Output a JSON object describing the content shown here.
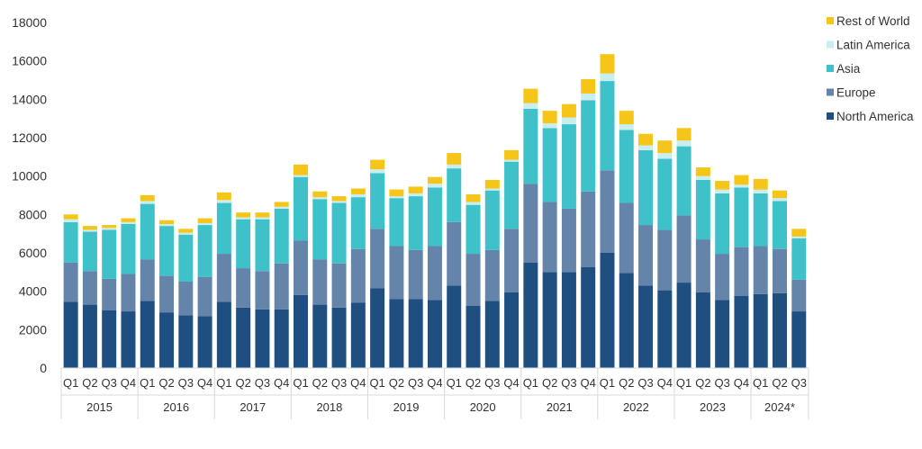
{
  "chart_data": {
    "type": "bar",
    "stacked": true,
    "title": "",
    "xlabel": "",
    "ylabel": "",
    "ylim": [
      0,
      18000
    ],
    "yticks": [
      0,
      2000,
      4000,
      6000,
      8000,
      10000,
      12000,
      14000,
      16000,
      18000
    ],
    "grid": false,
    "legend_position": "top-right",
    "years": [
      "2015",
      "2016",
      "2017",
      "2018",
      "2019",
      "2020",
      "2021",
      "2022",
      "2023",
      "2024*"
    ],
    "quarters_per_year": [
      4,
      4,
      4,
      4,
      4,
      4,
      4,
      4,
      4,
      3
    ],
    "categories": [
      "Q1",
      "Q2",
      "Q3",
      "Q4",
      "Q1",
      "Q2",
      "Q3",
      "Q4",
      "Q1",
      "Q2",
      "Q3",
      "Q4",
      "Q1",
      "Q2",
      "Q3",
      "Q4",
      "Q1",
      "Q2",
      "Q3",
      "Q4",
      "Q1",
      "Q2",
      "Q3",
      "Q4",
      "Q1",
      "Q2",
      "Q3",
      "Q4",
      "Q1",
      "Q2",
      "Q3",
      "Q4",
      "Q1",
      "Q2",
      "Q3",
      "Q4",
      "Q1",
      "Q2",
      "Q3"
    ],
    "series": [
      {
        "name": "North America",
        "color": "#1f4e80",
        "values": [
          3450,
          3300,
          3000,
          2950,
          3500,
          2900,
          2750,
          2700,
          3450,
          3150,
          3050,
          3050,
          3800,
          3300,
          3150,
          3400,
          4150,
          3600,
          3600,
          3550,
          4300,
          3250,
          3500,
          3950,
          5500,
          5000,
          5000,
          5250,
          6000,
          4950,
          4300,
          4050,
          4450,
          3950,
          3550,
          3750,
          3850,
          3900,
          2950
        ]
      },
      {
        "name": "Europe",
        "color": "#6485a9",
        "values": [
          2050,
          1750,
          1650,
          1950,
          2150,
          1900,
          1750,
          2050,
          2500,
          2050,
          2000,
          2400,
          2850,
          2350,
          2300,
          2800,
          3100,
          2750,
          2550,
          2800,
          3300,
          2700,
          2650,
          3300,
          4100,
          3650,
          3300,
          3950,
          4300,
          3650,
          3150,
          3150,
          3500,
          2750,
          2400,
          2550,
          2500,
          2300,
          1650
        ]
      },
      {
        "name": "Asia",
        "color": "#3fc1ca",
        "values": [
          2100,
          2050,
          2550,
          2600,
          2900,
          2600,
          2450,
          2700,
          2650,
          2550,
          2700,
          2850,
          3300,
          3150,
          3150,
          2700,
          2900,
          2500,
          2800,
          3050,
          2800,
          2550,
          3100,
          3500,
          3900,
          3850,
          4400,
          4750,
          4650,
          3800,
          3900,
          3700,
          3600,
          3100,
          3150,
          3100,
          2750,
          2500,
          2150
        ]
      },
      {
        "name": "Latin America",
        "color": "#c9eef0",
        "values": [
          150,
          100,
          100,
          100,
          150,
          100,
          100,
          100,
          150,
          100,
          100,
          100,
          100,
          100,
          100,
          150,
          200,
          100,
          150,
          200,
          200,
          150,
          100,
          100,
          300,
          250,
          350,
          350,
          400,
          300,
          250,
          300,
          300,
          200,
          200,
          150,
          200,
          150,
          100
        ]
      },
      {
        "name": "Rest of World",
        "color": "#f5c518",
        "values": [
          250,
          200,
          150,
          200,
          300,
          200,
          200,
          250,
          400,
          250,
          250,
          250,
          550,
          300,
          250,
          300,
          500,
          350,
          350,
          350,
          600,
          400,
          450,
          500,
          750,
          650,
          700,
          750,
          1000,
          700,
          600,
          650,
          650,
          450,
          450,
          500,
          550,
          400,
          400
        ]
      }
    ]
  }
}
